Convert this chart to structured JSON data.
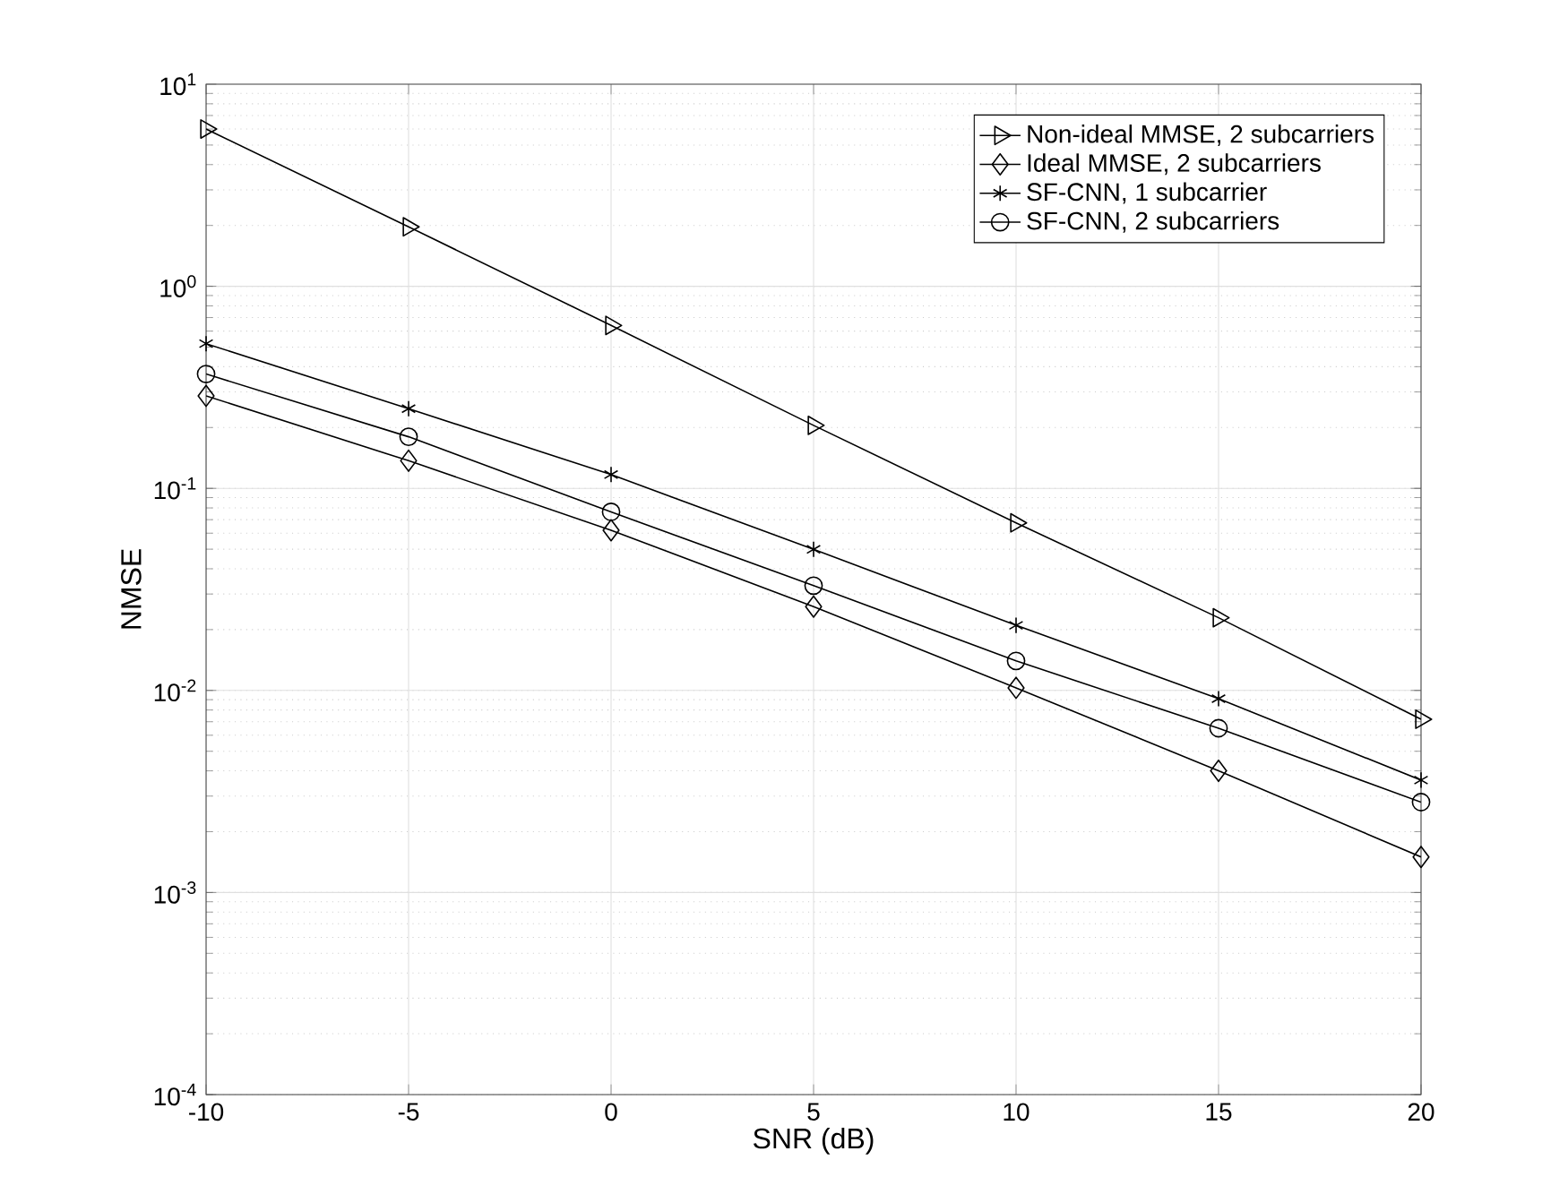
{
  "chart_data": {
    "type": "line",
    "xlabel": "SNR (dB)",
    "ylabel": "NMSE",
    "x": [
      -10,
      -5,
      0,
      5,
      10,
      15,
      20
    ],
    "series": [
      {
        "name": "Non-ideal MMSE, 2 subcarriers",
        "color": "#000000",
        "marker": "triangle",
        "values": [
          6.0,
          1.97,
          0.64,
          0.205,
          0.0675,
          0.0229,
          0.0072
        ]
      },
      {
        "name": "Ideal MMSE, 2 subcarriers",
        "color": "#000000",
        "marker": "diamond",
        "values": [
          0.287,
          0.137,
          0.062,
          0.026,
          0.0103,
          0.004,
          0.0015
        ]
      },
      {
        "name": "SF-CNN, 1 subcarrier",
        "color": "#000000",
        "marker": "cross",
        "values": [
          0.52,
          0.248,
          0.117,
          0.0499,
          0.021,
          0.0091,
          0.0036
        ]
      },
      {
        "name": "SF-CNN, 2 subcarriers",
        "color": "#000000",
        "marker": "circle",
        "values": [
          0.368,
          0.18,
          0.0765,
          0.033,
          0.014,
          0.0065,
          0.0028
        ]
      }
    ],
    "xlim": [
      -10,
      20
    ],
    "ylim": [
      0.0001,
      10
    ],
    "xticks": [
      -10,
      -5,
      0,
      5,
      10,
      15,
      20
    ],
    "yticks": [
      {
        "value": 0.0001,
        "label": "10$^{-4}$"
      },
      {
        "value": 0.001,
        "label": "10$^{-3}$"
      },
      {
        "value": 0.01,
        "label": "10$^{-2}$"
      },
      {
        "value": 0.1,
        "label": "10$^{-1}$"
      },
      {
        "value": 1,
        "label": "10$^{0}$"
      },
      {
        "value": 10,
        "label": "10$^{1}$"
      }
    ],
    "log": "y",
    "grid": true,
    "legend": "top right",
    "line_style": "solid"
  }
}
